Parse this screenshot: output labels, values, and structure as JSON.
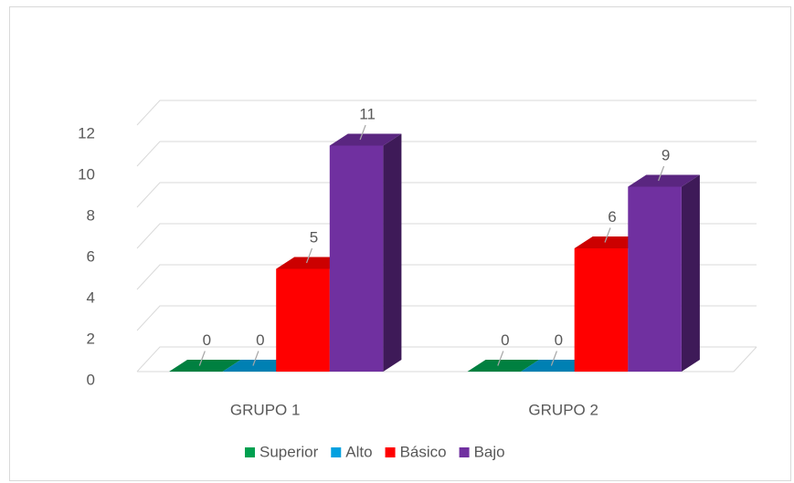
{
  "chart_data": {
    "type": "bar3d",
    "categories": [
      "GRUPO 1",
      "GRUPO 2"
    ],
    "series": [
      {
        "name": "Superior",
        "color": "#00a050",
        "values": [
          0,
          0
        ]
      },
      {
        "name": "Alto",
        "color": "#00a0e0",
        "values": [
          0,
          0
        ]
      },
      {
        "name": "Básico",
        "color": "#ff0000",
        "values": [
          5,
          6
        ]
      },
      {
        "name": "Bajo",
        "color": "#7030a0",
        "values": [
          11,
          9
        ]
      }
    ],
    "ylim": [
      0,
      12
    ],
    "yticks": [
      0,
      2,
      4,
      6,
      8,
      10,
      12
    ],
    "grid": true,
    "legend": "bottom",
    "data_labels": true
  }
}
